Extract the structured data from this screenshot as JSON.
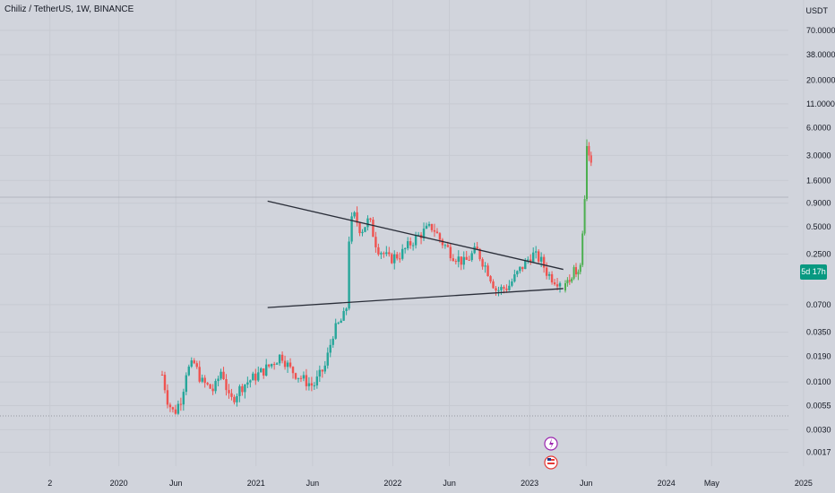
{
  "title": "Chiliz / TetherUS, 1W, BINANCE",
  "price_axis_unit": "USDT",
  "countdown_badge": "5d 17h",
  "colors": {
    "background": "#d1d4dc",
    "up": "#26a69a",
    "down": "#ef5350",
    "breakout": "#4caf50",
    "trendline": "#2a2e39",
    "badge": "#089981"
  },
  "chart_data": {
    "type": "candlestick",
    "symbol": "CHZUSDT",
    "interval": "1W",
    "exchange": "BINANCE",
    "y_scale": "log",
    "ylim": [
      0.0012,
      120
    ],
    "y_ticks": [
      70.0,
      38.0,
      20.0,
      11.0,
      6.0,
      3.0,
      1.6,
      0.9,
      0.5,
      0.25,
      0.07,
      0.035,
      0.019,
      0.01,
      0.0055,
      0.003,
      0.0017
    ],
    "y_tick_labels": [
      "70.0000",
      "38.0000",
      "20.0000",
      "11.0000",
      "6.0000",
      "3.0000",
      "1.6000",
      "0.9000",
      "0.5000",
      "0.2500",
      "0.0700",
      "0.0350",
      "0.0190",
      "0.0100",
      "0.0055",
      "0.0030",
      "0.0017"
    ],
    "x_ticks": [
      {
        "label": "2",
        "date": "2019-07"
      },
      {
        "label": "2020",
        "date": "2020-01"
      },
      {
        "label": "Jun",
        "date": "2020-06"
      },
      {
        "label": "2021",
        "date": "2021-01"
      },
      {
        "label": "Jun",
        "date": "2021-06"
      },
      {
        "label": "2022",
        "date": "2022-01"
      },
      {
        "label": "Jun",
        "date": "2022-06"
      },
      {
        "label": "2023",
        "date": "2023-01"
      },
      {
        "label": "Jun",
        "date": "2023-06"
      },
      {
        "label": "2024",
        "date": "2024-01"
      },
      {
        "label": "May",
        "date": "2024-05"
      },
      {
        "label": "2025",
        "date": "2025-01"
      }
    ],
    "last_price_approx": 2.5,
    "trendlines": [
      {
        "name": "upper",
        "from": {
          "date": "2021-02",
          "price": 0.95
        },
        "to": {
          "date": "2023-04",
          "price": 0.17
        }
      },
      {
        "name": "lower",
        "from": {
          "date": "2021-02",
          "price": 0.065
        },
        "to": {
          "date": "2023-04",
          "price": 0.105
        }
      }
    ],
    "guide": [
      {
        "t": 0.0,
        "p": 0.012
      },
      {
        "t": 0.015,
        "p": 0.006
      },
      {
        "t": 0.03,
        "p": 0.0045
      },
      {
        "t": 0.05,
        "p": 0.007
      },
      {
        "t": 0.06,
        "p": 0.013
      },
      {
        "t": 0.08,
        "p": 0.016
      },
      {
        "t": 0.1,
        "p": 0.01
      },
      {
        "t": 0.13,
        "p": 0.008
      },
      {
        "t": 0.15,
        "p": 0.014
      },
      {
        "t": 0.17,
        "p": 0.006
      },
      {
        "t": 0.2,
        "p": 0.009
      },
      {
        "t": 0.24,
        "p": 0.012
      },
      {
        "t": 0.27,
        "p": 0.015
      },
      {
        "t": 0.3,
        "p": 0.02
      },
      {
        "t": 0.32,
        "p": 0.014
      },
      {
        "t": 0.35,
        "p": 0.011
      },
      {
        "t": 0.38,
        "p": 0.009
      },
      {
        "t": 0.41,
        "p": 0.015
      },
      {
        "t": 0.43,
        "p": 0.035
      },
      {
        "t": 0.455,
        "p": 0.05
      },
      {
        "t": 0.465,
        "p": 0.07
      },
      {
        "t": 0.47,
        "p": 0.4
      },
      {
        "t": 0.48,
        "p": 0.7
      },
      {
        "t": 0.5,
        "p": 0.45
      },
      {
        "t": 0.52,
        "p": 0.6
      },
      {
        "t": 0.54,
        "p": 0.3
      },
      {
        "t": 0.57,
        "p": 0.22
      },
      {
        "t": 0.6,
        "p": 0.25
      },
      {
        "t": 0.63,
        "p": 0.35
      },
      {
        "t": 0.66,
        "p": 0.45
      },
      {
        "t": 0.68,
        "p": 0.5
      },
      {
        "t": 0.7,
        "p": 0.35
      },
      {
        "t": 0.73,
        "p": 0.25
      },
      {
        "t": 0.76,
        "p": 0.2
      },
      {
        "t": 0.79,
        "p": 0.28
      },
      {
        "t": 0.82,
        "p": 0.16
      },
      {
        "t": 0.84,
        "p": 0.1
      },
      {
        "t": 0.87,
        "p": 0.11
      },
      {
        "t": 0.9,
        "p": 0.17
      },
      {
        "t": 0.93,
        "p": 0.25
      },
      {
        "t": 0.95,
        "p": 0.22
      },
      {
        "t": 0.97,
        "p": 0.15
      },
      {
        "t": 0.99,
        "p": 0.13
      }
    ],
    "breakout_candles": [
      {
        "open": 0.1,
        "high": 0.13,
        "low": 0.095,
        "close": 0.12
      },
      {
        "open": 0.12,
        "high": 0.14,
        "low": 0.11,
        "close": 0.13
      },
      {
        "open": 0.13,
        "high": 0.15,
        "low": 0.115,
        "close": 0.125
      },
      {
        "open": 0.125,
        "high": 0.14,
        "low": 0.12,
        "close": 0.135
      },
      {
        "open": 0.135,
        "high": 0.19,
        "low": 0.13,
        "close": 0.18
      },
      {
        "open": 0.18,
        "high": 0.2,
        "low": 0.14,
        "close": 0.15
      },
      {
        "open": 0.15,
        "high": 0.17,
        "low": 0.13,
        "close": 0.16
      },
      {
        "open": 0.16,
        "high": 0.2,
        "low": 0.15,
        "close": 0.19
      },
      {
        "open": 0.19,
        "high": 0.45,
        "low": 0.18,
        "close": 0.42
      },
      {
        "open": 0.42,
        "high": 1.1,
        "low": 0.4,
        "close": 1.0
      },
      {
        "open": 1.0,
        "high": 4.5,
        "low": 0.95,
        "close": 3.8
      },
      {
        "open": 3.8,
        "high": 4.2,
        "low": 2.6,
        "close": 3.0
      },
      {
        "open": 3.0,
        "high": 3.3,
        "low": 2.3,
        "close": 2.5
      }
    ]
  }
}
